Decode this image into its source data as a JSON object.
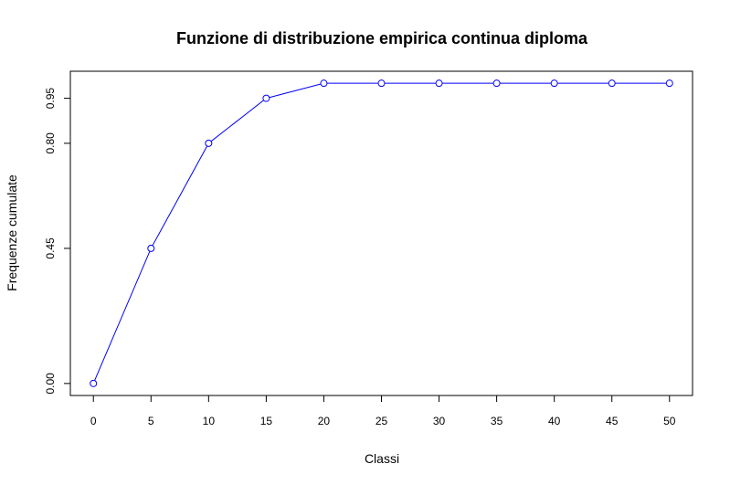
{
  "chart_data": {
    "type": "line",
    "title": "Funzione di distribuzione empirica continua diploma",
    "xlabel": "Classi",
    "ylabel": "Frequenze cumulate",
    "x": [
      0,
      5,
      10,
      15,
      20,
      25,
      30,
      35,
      40,
      45,
      50
    ],
    "xticks": [
      "0",
      "5",
      "10",
      "15",
      "20",
      "25",
      "30",
      "35",
      "40",
      "45",
      "50"
    ],
    "yticks": [
      "0.00",
      "0.45",
      "0.80",
      "0.95"
    ],
    "ytick_values": [
      0.0,
      0.45,
      0.8,
      0.95
    ],
    "series": [
      {
        "values": [
          0.0,
          0.45,
          0.8,
          0.95,
          1.0,
          1.0,
          1.0,
          1.0,
          1.0,
          1.0,
          1.0
        ]
      }
    ],
    "xlim": [
      -2,
      52
    ],
    "ylim": [
      -0.04,
      1.04
    ],
    "line_color": "#0000ff",
    "marker": "open-circle",
    "grid": false,
    "legend": "none"
  }
}
